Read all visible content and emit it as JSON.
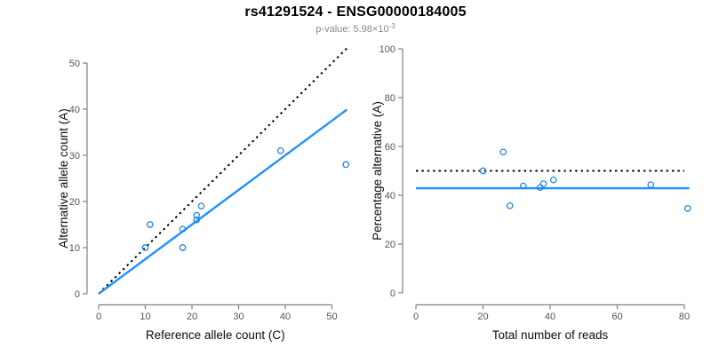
{
  "header": {
    "title": "rs41291524 - ENSG00000184005",
    "subtitle_prefix": "p-value: ",
    "subtitle_base": "5.98×10",
    "subtitle_exponent": "-3"
  },
  "colors": {
    "accent_blue": "#1E90FF",
    "point_blue": "#2A84E0",
    "dotted_black": "#000000",
    "axis_line_gray": "#808080",
    "tick_label_gray": "#555555",
    "axis_title_color": "#0d0d0d",
    "subtitle_gray": "#8a8a8a",
    "background": "#ffffff"
  },
  "chart_data": [
    {
      "type": "scatter",
      "name": "allele-count-plot",
      "xlabel": "Reference allele count (C)",
      "ylabel": "Alternative allele count (A)",
      "xticks": [
        0,
        10,
        20,
        30,
        40,
        50
      ],
      "yticks": [
        0,
        10,
        20,
        30,
        40,
        50
      ],
      "xlim": [
        0,
        53.5
      ],
      "ylim": [
        0,
        53.5
      ],
      "grid": false,
      "points": [
        [
          10,
          10
        ],
        [
          11,
          15
        ],
        [
          18,
          10
        ],
        [
          18,
          14
        ],
        [
          21,
          16
        ],
        [
          21,
          17
        ],
        [
          22,
          19
        ],
        [
          39,
          31
        ],
        [
          53,
          28
        ]
      ],
      "lines": [
        {
          "name": "identity-line",
          "style": "dotted",
          "color": "#000000",
          "x1": 0,
          "y1": 0,
          "x2": 53.5,
          "y2": 53.5
        },
        {
          "name": "fitted-ratio-line",
          "style": "solid",
          "color": "#1E90FF",
          "x1": 0,
          "y1": 0,
          "x2": 53.2,
          "y2": 39.9
        }
      ]
    },
    {
      "type": "scatter",
      "name": "percentage-plot",
      "xlabel": "Total number of reads",
      "ylabel": "Percentage alternative (A)",
      "xticks": [
        0,
        20,
        40,
        60,
        80
      ],
      "yticks": [
        0,
        20,
        40,
        60,
        80,
        100
      ],
      "xlim": [
        0,
        82
      ],
      "ylim": [
        0,
        100
      ],
      "grid": false,
      "points": [
        [
          20,
          50
        ],
        [
          26,
          57.7
        ],
        [
          28,
          35.7
        ],
        [
          32,
          43.8
        ],
        [
          37,
          43.2
        ],
        [
          38,
          44.7
        ],
        [
          41,
          46.3
        ],
        [
          70,
          44.3
        ],
        [
          81,
          34.6
        ]
      ],
      "lines": [
        {
          "name": "expected-50pct-line",
          "style": "dotted",
          "color": "#000000",
          "x1": 0,
          "y1": 50,
          "x2": 80,
          "y2": 50
        },
        {
          "name": "observed-mean-line",
          "style": "solid",
          "color": "#1E90FF",
          "x1": 0,
          "y1": 42.9,
          "x2": 81.5,
          "y2": 42.9
        }
      ]
    }
  ]
}
